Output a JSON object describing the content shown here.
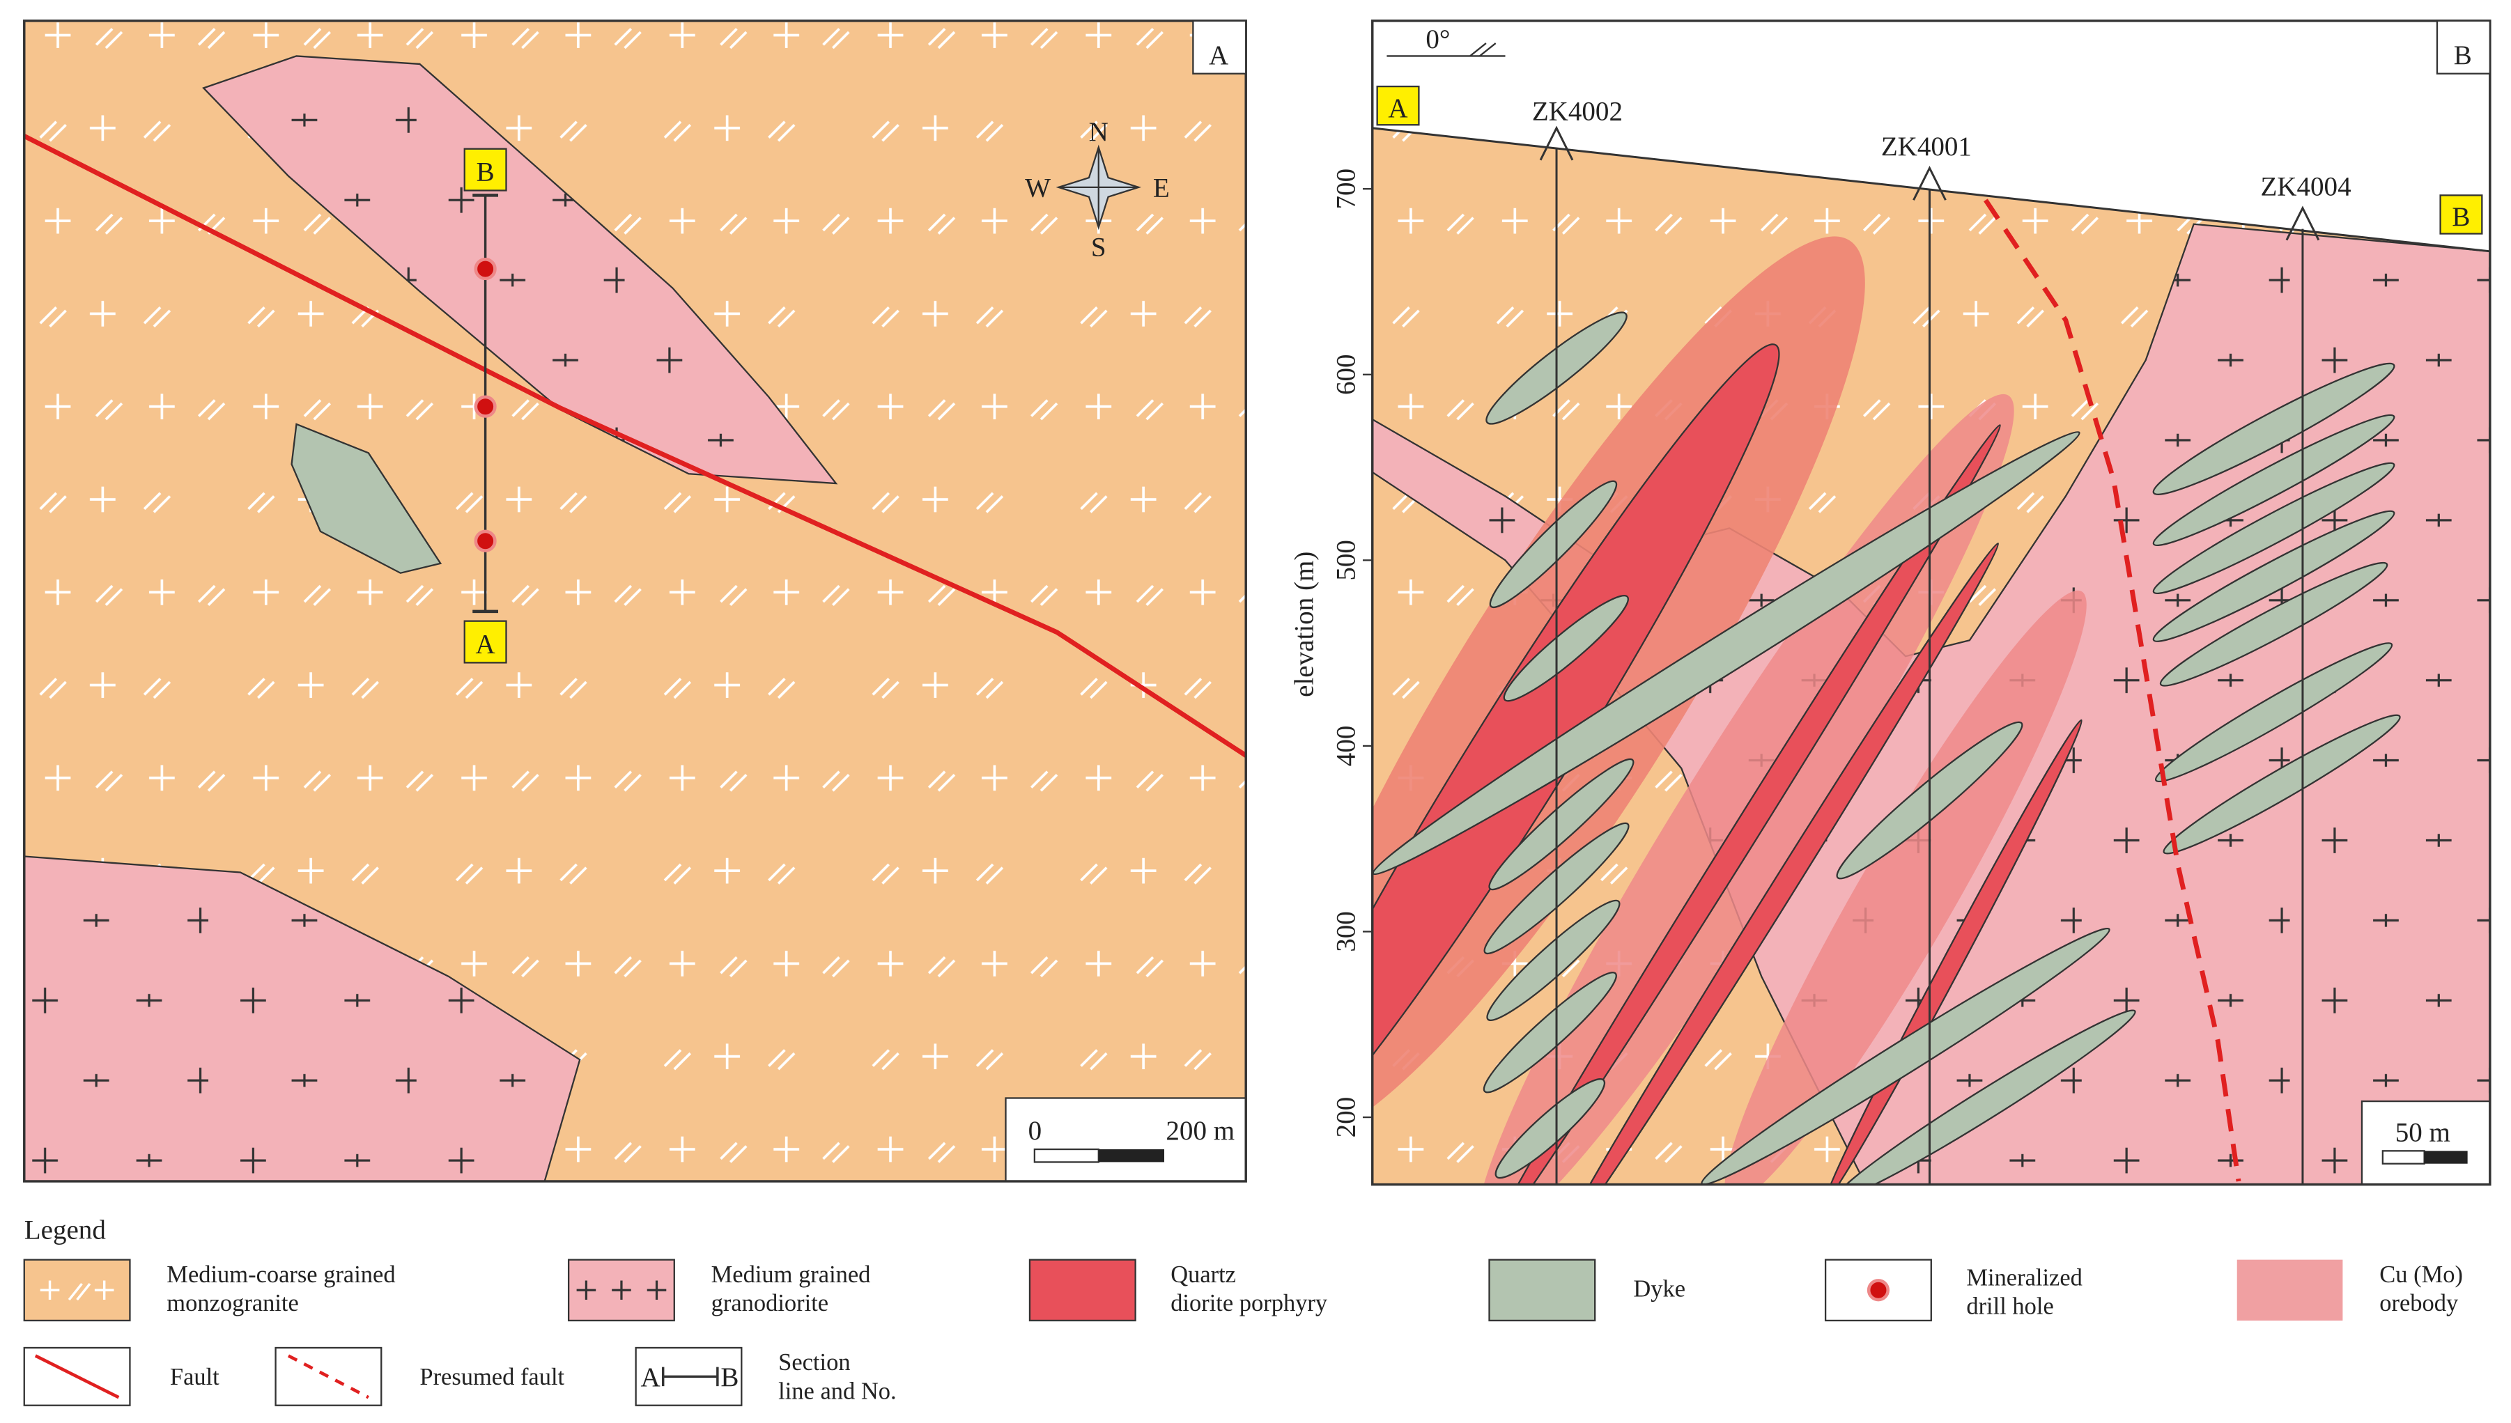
{
  "panel_a": {
    "label": "A",
    "section": {
      "start": "A",
      "end": "B"
    },
    "compass": {
      "n": "N",
      "s": "S",
      "e": "E",
      "w": "W"
    },
    "scale": {
      "zero": "0",
      "length": "200 m"
    }
  },
  "panel_b": {
    "label": "B",
    "north": "0°",
    "section_ends": [
      "A",
      "B"
    ],
    "drill_holes": [
      "ZK4002",
      "ZK4001",
      "ZK4004"
    ],
    "y_axis": {
      "label": "elevation (m)",
      "ticks": [
        700,
        600,
        500,
        400,
        300,
        200
      ]
    },
    "scale": "50 m"
  },
  "legend": {
    "title": "Legend",
    "items": [
      {
        "lines": [
          "Medium-coarse grained",
          "monzogranite"
        ]
      },
      {
        "lines": [
          "Medium grained",
          "granodiorite"
        ]
      },
      {
        "lines": [
          "Quartz",
          "diorite porphyry"
        ]
      },
      {
        "lines": [
          "Dyke"
        ]
      },
      {
        "lines": [
          "Mineralized",
          "drill hole"
        ]
      },
      {
        "lines": [
          "Cu (Mo)",
          "orebody"
        ]
      },
      {
        "lines": [
          "Fault"
        ]
      },
      {
        "lines": [
          "Presumed fault"
        ]
      },
      {
        "lines": [
          "Section",
          "line and No."
        ]
      }
    ],
    "section_symbol": {
      "start": "A",
      "end": "B"
    }
  }
}
